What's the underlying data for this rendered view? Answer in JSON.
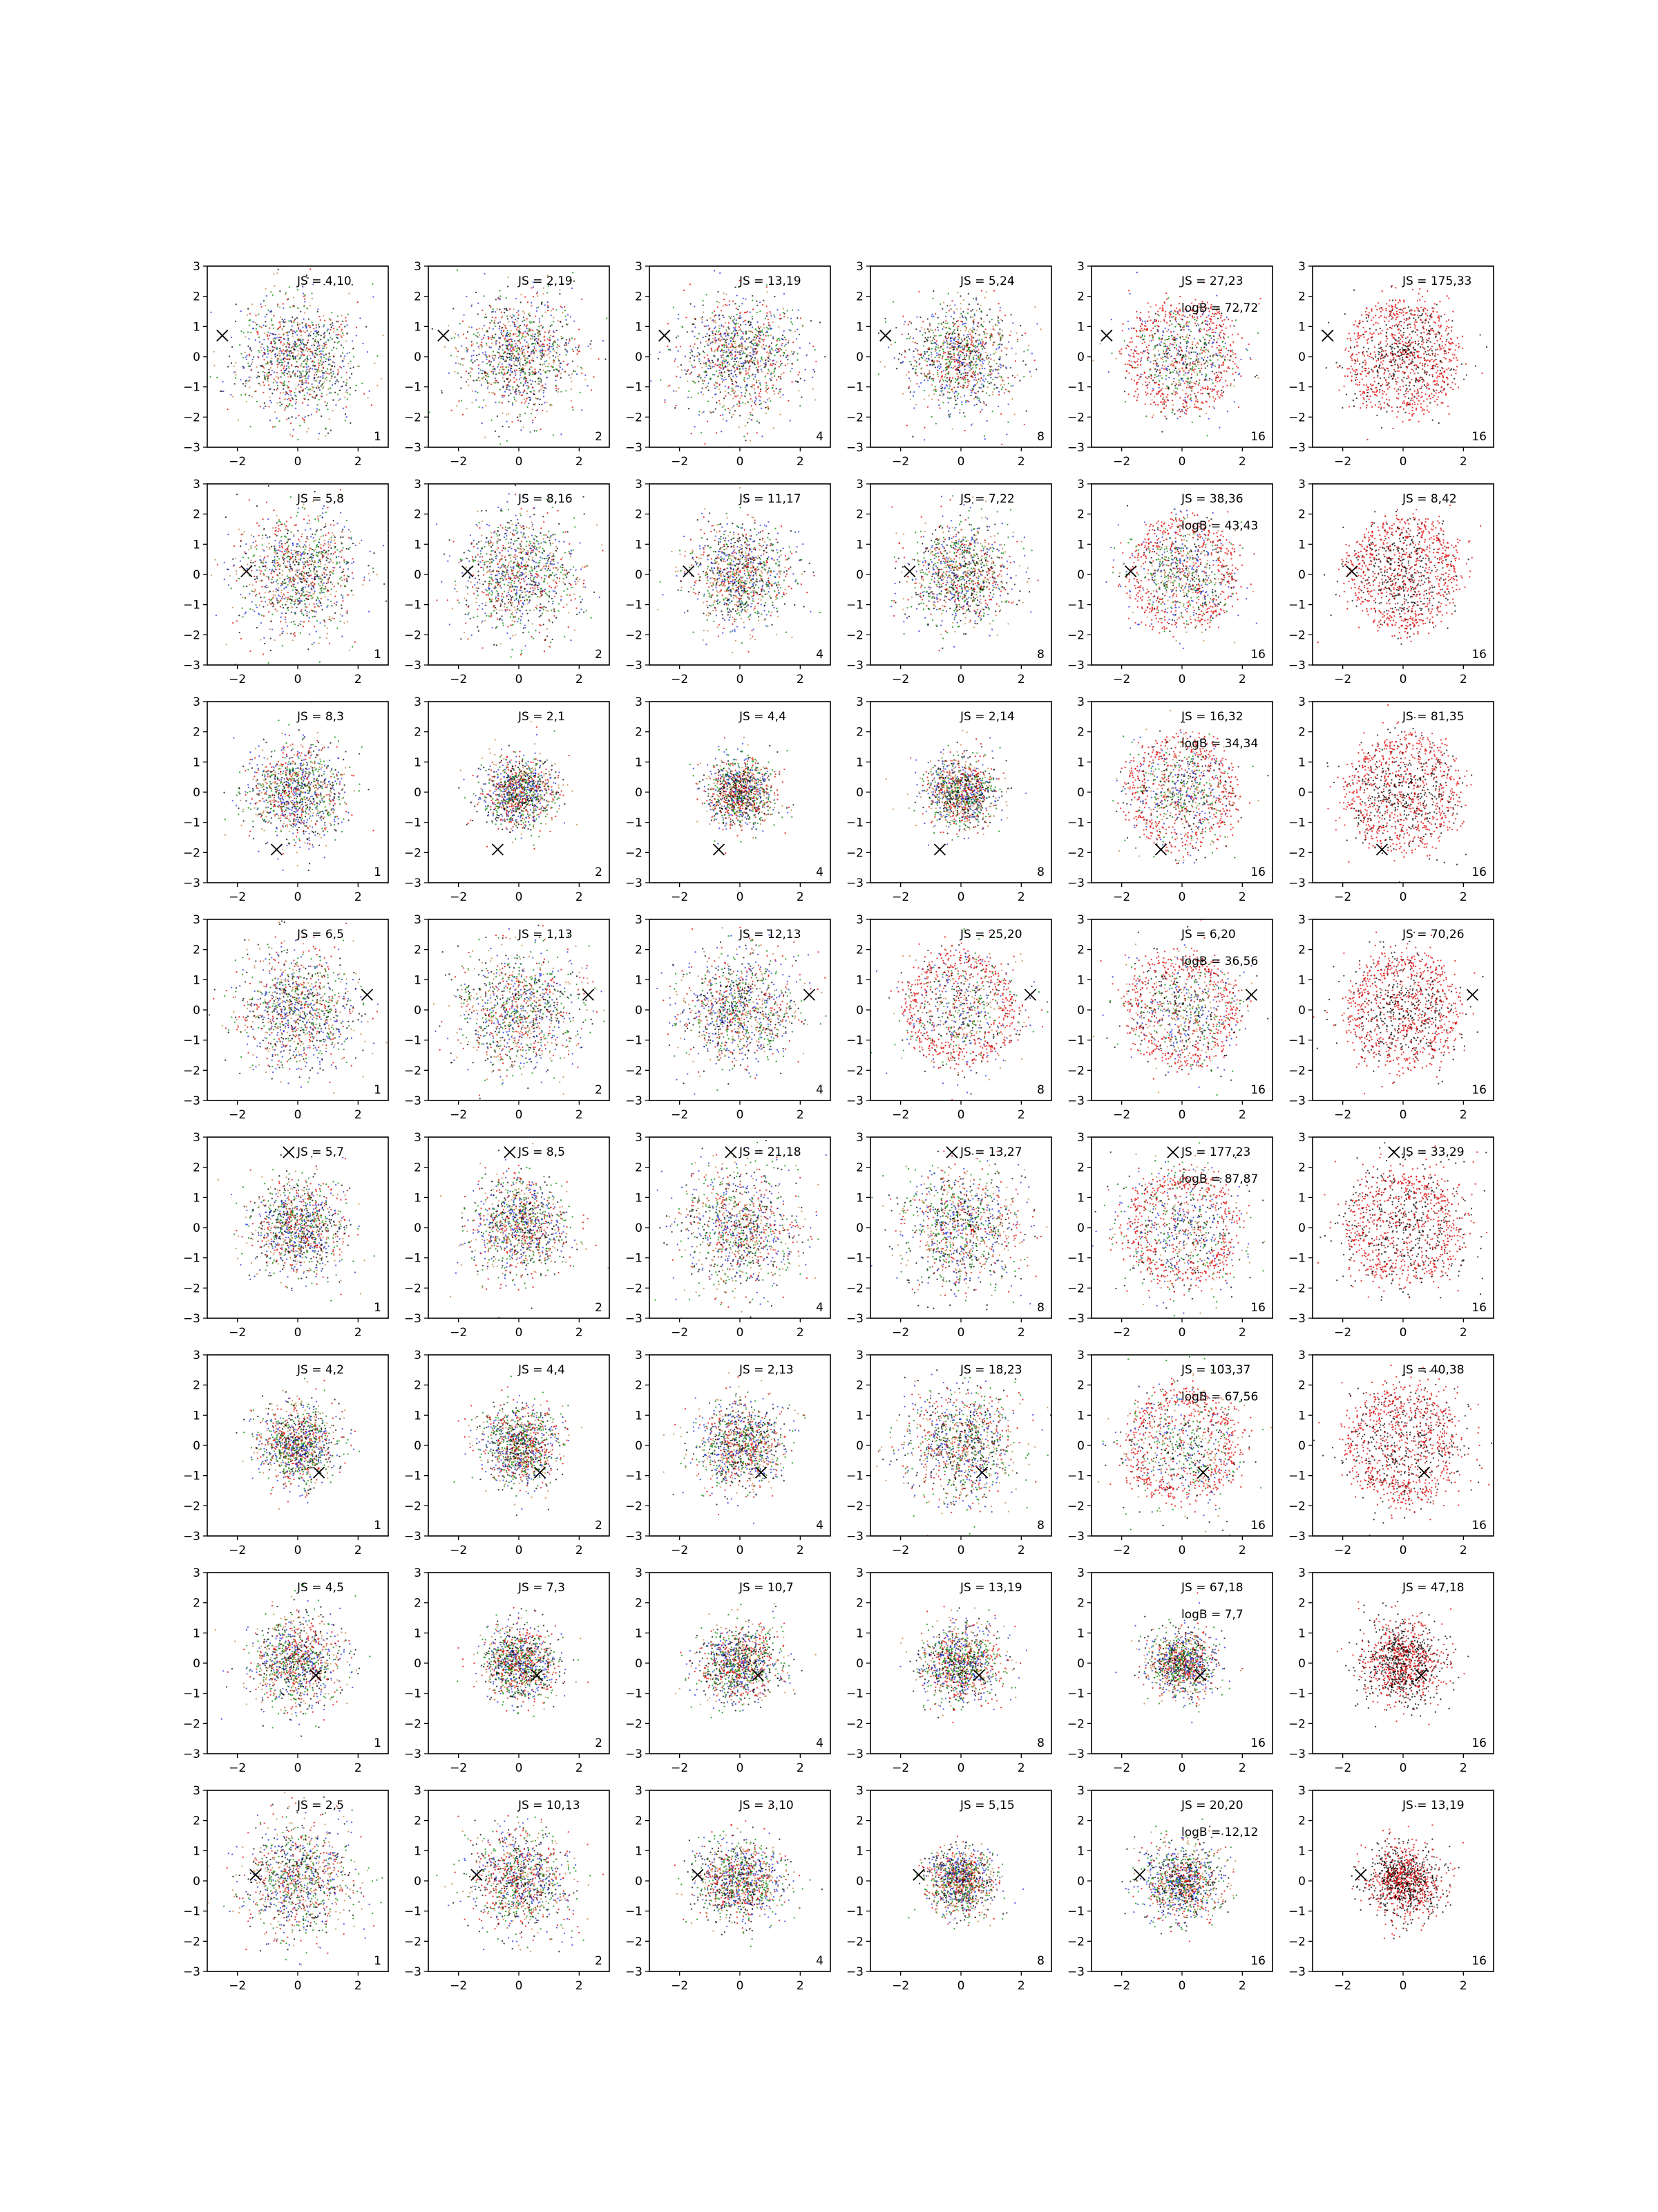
{
  "figure": {
    "rows": 8,
    "cols": 6,
    "colors": {
      "red": "#e00000",
      "green": "#008800",
      "blue": "#2030e0",
      "black": "#000000",
      "other": "#c08040"
    }
  },
  "chart_data": {
    "type": "scatter",
    "xlim": [
      -3,
      3
    ],
    "ylim": [
      -3,
      3
    ],
    "xticks": [
      -2,
      0,
      2
    ],
    "yticks": [
      -3,
      -2,
      -1,
      0,
      1,
      2,
      3
    ],
    "grid": false,
    "legend": "none",
    "corner_labels_by_column": [
      "1",
      "2",
      "4",
      "8",
      "16",
      "16"
    ],
    "rows": [
      {
        "marker": [
          -2.5,
          0.7
        ],
        "js_labels": [
          "JS = 4,10",
          "JS = 2,19",
          "JS = 13,19",
          "JS = 5,24",
          "JS = 27,23",
          "JS = 175,33"
        ],
        "logb_label": "logB = 72,72",
        "spread": [
          1.0,
          1.0,
          0.95,
          0.9,
          0.9,
          0.85
        ],
        "ring": [
          0,
          0,
          0,
          0,
          1,
          1
        ]
      },
      {
        "marker": [
          -1.7,
          0.1
        ],
        "js_labels": [
          "JS = 5,8",
          "JS = 8,16",
          "JS = 11,17",
          "JS = 7,22",
          "JS = 38,36",
          "JS = 8,42"
        ],
        "logb_label": "logB = 43,43",
        "spread": [
          1.0,
          1.0,
          0.85,
          0.85,
          0.85,
          0.85
        ],
        "ring": [
          0,
          0,
          0,
          0,
          1,
          1
        ]
      },
      {
        "marker": [
          -0.7,
          -1.9
        ],
        "js_labels": [
          "JS = 8,3",
          "JS = 2,1",
          "JS = 4,4",
          "JS = 2,14",
          "JS = 16,32",
          "JS = 81,35"
        ],
        "logb_label": "logB = 34,34",
        "spread": [
          0.8,
          0.6,
          0.55,
          0.6,
          0.9,
          0.9
        ],
        "ring": [
          0,
          0,
          0,
          0,
          1,
          1
        ]
      },
      {
        "marker": [
          2.3,
          0.5
        ],
        "js_labels": [
          "JS = 6,5",
          "JS = 1,13",
          "JS = 12,13",
          "JS = 25,20",
          "JS = 6,20",
          "JS = 70,26"
        ],
        "logb_label": "logB = 36,56",
        "spread": [
          1.0,
          1.0,
          0.95,
          0.95,
          0.95,
          0.95
        ],
        "ring": [
          0,
          0,
          0,
          1,
          1,
          1
        ]
      },
      {
        "marker": [
          -0.3,
          2.5
        ],
        "js_labels": [
          "JS = 5,7",
          "JS = 8,5",
          "JS = 21,18",
          "JS = 13,27",
          "JS = 177,23",
          "JS = 33,29"
        ],
        "logb_label": "logB = 87,87",
        "spread": [
          0.8,
          0.8,
          1.0,
          1.0,
          1.05,
          1.05
        ],
        "ring": [
          0,
          0,
          0,
          0,
          1,
          1
        ]
      },
      {
        "marker": [
          0.7,
          -0.9
        ],
        "js_labels": [
          "JS = 4,2",
          "JS = 4,4",
          "JS = 2,13",
          "JS = 18,23",
          "JS = 103,37",
          "JS = 40,38"
        ],
        "logb_label": "logB = 67,56",
        "spread": [
          0.65,
          0.65,
          0.75,
          0.95,
          1.0,
          1.0
        ],
        "ring": [
          0,
          0,
          0,
          0,
          1,
          1
        ]
      },
      {
        "marker": [
          0.6,
          -0.4
        ],
        "js_labels": [
          "JS = 4,5",
          "JS = 7,3",
          "JS = 10,7",
          "JS = 13,19",
          "JS = 67,18",
          "JS = 47,18"
        ],
        "logb_label": "logB = 7,7",
        "spread": [
          0.75,
          0.6,
          0.65,
          0.65,
          0.55,
          0.65
        ],
        "ring": [
          0,
          0,
          0,
          0,
          0,
          0
        ]
      },
      {
        "marker": [
          -1.4,
          0.2
        ],
        "js_labels": [
          "JS = 2,5",
          "JS = 10,13",
          "JS = 3,10",
          "JS = 5,15",
          "JS = 20,20",
          "JS = 13,19"
        ],
        "logb_label": "logB = 12,12",
        "spread": [
          0.95,
          0.85,
          0.7,
          0.55,
          0.65,
          0.6
        ],
        "ring": [
          0,
          0,
          0,
          0,
          0,
          0
        ]
      }
    ]
  }
}
